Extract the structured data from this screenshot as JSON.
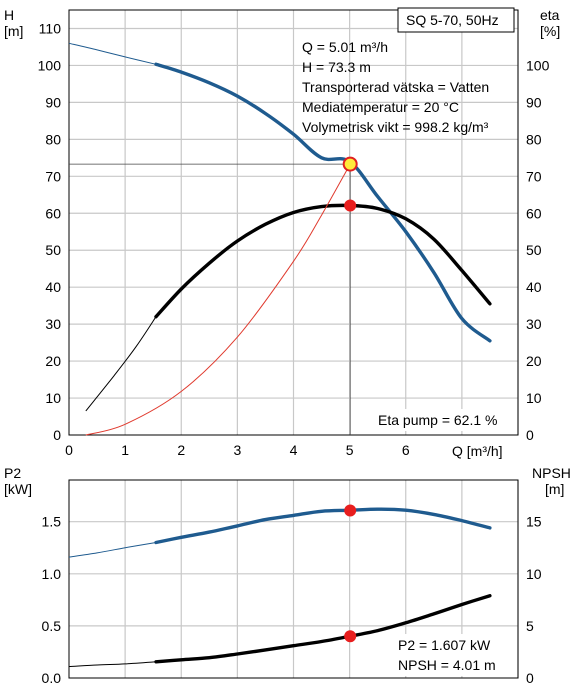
{
  "chart_data": [
    {
      "type": "line",
      "title": "SQ 5-70, 50Hz",
      "xlabel": "Q [m³/h]",
      "ylabel_left_name": "H",
      "ylabel_left_unit": "[m]",
      "ylabel_right_name": "eta",
      "ylabel_right_unit": "[%]",
      "xlim": [
        0,
        8
      ],
      "ylim_left": [
        0,
        115
      ],
      "ylim_right": [
        0,
        115
      ],
      "x_ticks": [
        0,
        1,
        2,
        3,
        4,
        5,
        6
      ],
      "y_ticks_left": [
        0,
        10,
        20,
        30,
        40,
        50,
        60,
        70,
        80,
        90,
        100,
        110
      ],
      "y_ticks_right": [
        0,
        10,
        20,
        30,
        40,
        50,
        60,
        70,
        80,
        90,
        100
      ],
      "grid": true,
      "info_lines": [
        "Q = 5.01 m³/h",
        "H = 73.3 m",
        "Transporterad vätska = Vatten",
        "Mediatemperatur = 20 °C",
        "Volymetrisk vikt = 998.2 kg/m³"
      ],
      "annotation": "Eta pump = 62.1 %",
      "series": [
        {
          "key": "H",
          "axis": "left",
          "color": "#1f5b8f",
          "thin_points": [
            [
              0,
              106
            ],
            [
              0.5,
              104.2
            ],
            [
              1,
              102.3
            ],
            [
              1.55,
              100.3
            ]
          ],
          "points": [
            [
              1.55,
              100.3
            ],
            [
              2,
              98.2
            ],
            [
              2.5,
              95.3
            ],
            [
              3,
              91.7
            ],
            [
              3.5,
              87
            ],
            [
              4,
              81.4
            ],
            [
              4.5,
              75
            ],
            [
              5,
              74
            ],
            [
              5.5,
              64.5
            ],
            [
              6,
              55
            ],
            [
              6.5,
              44
            ],
            [
              7,
              31.5
            ],
            [
              7.5,
              25.5
            ]
          ]
        },
        {
          "key": "eta",
          "axis": "right",
          "color": "#000000",
          "thin_points": [
            [
              0.3,
              6.5
            ],
            [
              0.8,
              16
            ],
            [
              1.2,
              24
            ],
            [
              1.55,
              32
            ]
          ],
          "points": [
            [
              1.55,
              32
            ],
            [
              2,
              39.5
            ],
            [
              2.5,
              46.5
            ],
            [
              3,
              52.5
            ],
            [
              3.5,
              57
            ],
            [
              4,
              60.2
            ],
            [
              4.5,
              61.8
            ],
            [
              5,
              62.1
            ],
            [
              5.5,
              61.3
            ],
            [
              6,
              58.5
            ],
            [
              6.5,
              53
            ],
            [
              7,
              44.5
            ],
            [
              7.5,
              35.5
            ]
          ]
        },
        {
          "key": "system",
          "axis": "left",
          "color": "#e03a2e",
          "thin_points": [
            [
              0.3,
              0
            ],
            [
              1,
              2.9
            ],
            [
              2,
              11.8
            ],
            [
              3,
              26.5
            ],
            [
              4,
              47
            ],
            [
              4.5,
              59.5
            ],
            [
              5.01,
              73.3
            ]
          ],
          "points": []
        }
      ],
      "markers": [
        {
          "x": 5.01,
          "y": 73.3,
          "style": "duty-point"
        },
        {
          "x": 5.01,
          "y": 62.1,
          "style": "red-dot"
        }
      ],
      "duty_guides": {
        "x": 5.01,
        "y": 73.3
      }
    },
    {
      "type": "line",
      "xlabel": "",
      "ylabel_left_name": "P2",
      "ylabel_left_unit": "[kW]",
      "ylabel_right_name": "NPSH",
      "ylabel_right_unit": "[m]",
      "xlim": [
        0,
        8
      ],
      "ylim_left": [
        0,
        1.9
      ],
      "ylim_right": [
        0,
        19
      ],
      "y_ticks_left": [
        0.0,
        0.5,
        1.0,
        1.5
      ],
      "y_ticks_left_labels": [
        "0.0",
        "0.5",
        "1.0",
        "1.5"
      ],
      "y_ticks_right": [
        0,
        5,
        10,
        15
      ],
      "grid": true,
      "info_lines": [
        "P2 = 1.607 kW",
        "NPSH = 4.01 m"
      ],
      "series": [
        {
          "key": "P2",
          "axis": "left",
          "color": "#1f5b8f",
          "thin_points": [
            [
              0,
              1.16
            ],
            [
              0.5,
              1.2
            ],
            [
              1,
              1.25
            ],
            [
              1.55,
              1.3
            ]
          ],
          "points": [
            [
              1.55,
              1.3
            ],
            [
              2,
              1.35
            ],
            [
              2.5,
              1.4
            ],
            [
              3,
              1.46
            ],
            [
              3.5,
              1.52
            ],
            [
              4,
              1.56
            ],
            [
              4.5,
              1.6
            ],
            [
              5,
              1.61
            ],
            [
              5.5,
              1.62
            ],
            [
              6,
              1.61
            ],
            [
              6.5,
              1.57
            ],
            [
              7,
              1.51
            ],
            [
              7.5,
              1.44
            ]
          ]
        },
        {
          "key": "NPSH",
          "axis": "right",
          "color": "#000000",
          "thin_points": [
            [
              0,
              1.1
            ],
            [
              0.5,
              1.25
            ],
            [
              1,
              1.35
            ],
            [
              1.55,
              1.55
            ]
          ],
          "points": [
            [
              1.55,
              1.55
            ],
            [
              2,
              1.75
            ],
            [
              2.5,
              1.95
            ],
            [
              3,
              2.3
            ],
            [
              3.5,
              2.7
            ],
            [
              4,
              3.1
            ],
            [
              4.5,
              3.5
            ],
            [
              5,
              4.0
            ],
            [
              5.5,
              4.55
            ],
            [
              6,
              5.3
            ],
            [
              6.5,
              6.15
            ],
            [
              7,
              7.05
            ],
            [
              7.5,
              7.9
            ]
          ]
        }
      ],
      "markers": [
        {
          "x": 5.01,
          "y": 1.607,
          "axis": "left",
          "style": "red-dot"
        },
        {
          "x": 5.01,
          "y": 4.01,
          "axis": "right",
          "style": "red-dot"
        }
      ]
    }
  ]
}
